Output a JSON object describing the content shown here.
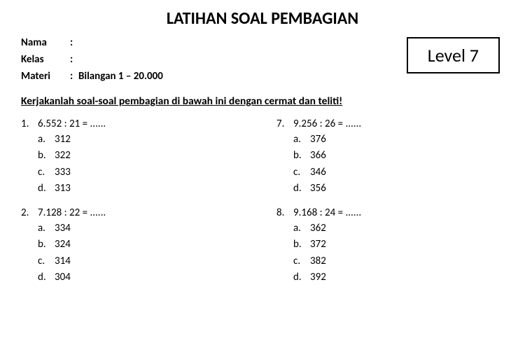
{
  "title": "LATIHAN SOAL PEMBAGIAN",
  "meta": {
    "nama_label": "Nama",
    "nama_value": "",
    "kelas_label": "Kelas",
    "kelas_value": "",
    "materi_label": "Materi",
    "materi_value": "Bilangan 1 – 20.000"
  },
  "level": "Level 7",
  "instruction": "Kerjakanlah soal-soal pembagian di bawah ini dengan cermat dan teliti!",
  "colon": ":",
  "questions_left": [
    {
      "num": "1.",
      "text": "6.552 : 21 = ......",
      "options": [
        {
          "letter": "a.",
          "value": "312"
        },
        {
          "letter": "b.",
          "value": "322"
        },
        {
          "letter": "c.",
          "value": "333"
        },
        {
          "letter": "d.",
          "value": "313"
        }
      ]
    },
    {
      "num": "2.",
      "text": "7.128 : 22 = ......",
      "options": [
        {
          "letter": "a.",
          "value": "334"
        },
        {
          "letter": "b.",
          "value": "324"
        },
        {
          "letter": "c.",
          "value": "314"
        },
        {
          "letter": "d.",
          "value": "304"
        }
      ]
    }
  ],
  "questions_right": [
    {
      "num": "7.",
      "text": "9.256 : 26 = ......",
      "options": [
        {
          "letter": "a.",
          "value": "376"
        },
        {
          "letter": "b.",
          "value": "366"
        },
        {
          "letter": "c.",
          "value": "346"
        },
        {
          "letter": "d.",
          "value": "356"
        }
      ]
    },
    {
      "num": "8.",
      "text": "9.168 : 24 = ......",
      "options": [
        {
          "letter": "a.",
          "value": "362"
        },
        {
          "letter": "b.",
          "value": "372"
        },
        {
          "letter": "c.",
          "value": "382"
        },
        {
          "letter": "d.",
          "value": "392"
        }
      ]
    }
  ],
  "styling": {
    "font_family": "Calibri, Arial, sans-serif",
    "background_color": "#ffffff",
    "text_color": "#000000",
    "title_fontsize": 24,
    "body_fontsize": 15,
    "level_fontsize": 26,
    "level_border": "2px solid #000"
  }
}
